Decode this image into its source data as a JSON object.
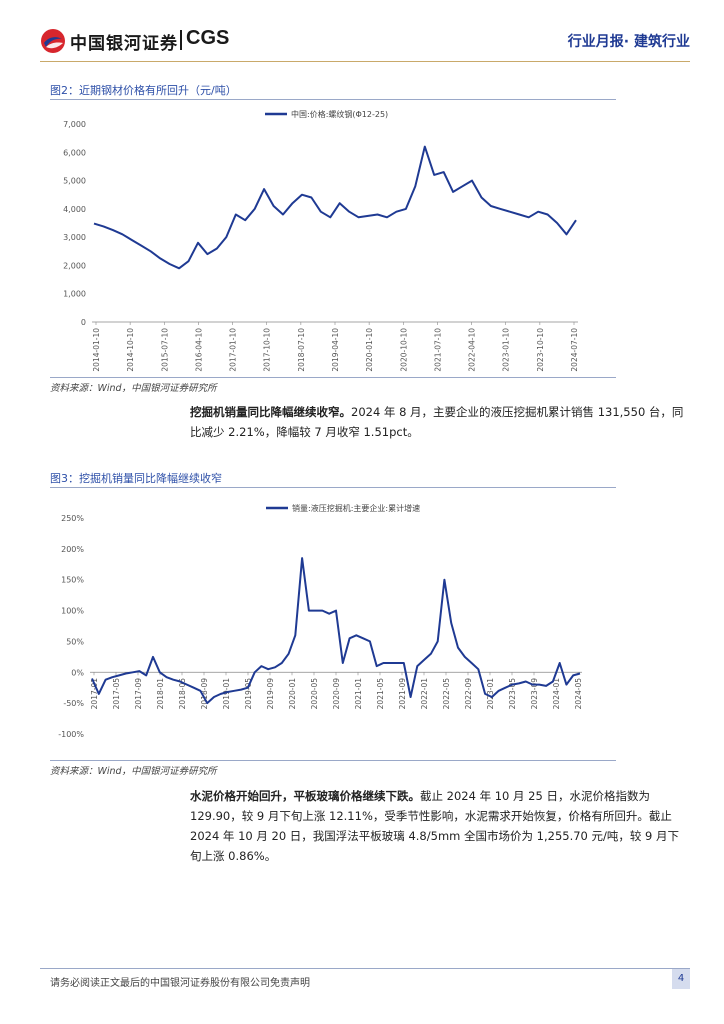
{
  "header": {
    "brand_cn": "中国银河证券",
    "brand_en": "CGS",
    "report_tag": "行业月报· 建筑行业"
  },
  "figure2": {
    "caption": "图2：近期钢材价格有所回升（元/吨）",
    "source": "资料来源：Wind，中国银河证券研究所",
    "chart_data": {
      "type": "line",
      "title": "",
      "series": [
        {
          "name": "中国:价格:螺纹钢(Φ12-25)",
          "values": [
            3480,
            3380,
            3250,
            3100,
            2900,
            2700,
            2500,
            2250,
            2050,
            1900,
            2150,
            2800,
            2400,
            2600,
            3000,
            3800,
            3600,
            4000,
            4700,
            4100,
            3800,
            4200,
            4500,
            4400,
            3900,
            3700,
            4200,
            3900,
            3700,
            3750,
            3800,
            3700,
            3900,
            4000,
            4800,
            6200,
            5200,
            5300,
            4600,
            4800,
            5000,
            4400,
            4100,
            4000,
            3900,
            3800,
            3700,
            3900,
            3800,
            3500,
            3100,
            3600
          ]
        }
      ],
      "x_tick_labels": [
        "2014-01-10",
        "2014-10-10",
        "2015-07-10",
        "2016-04-10",
        "2017-01-10",
        "2017-10-10",
        "2018-07-10",
        "2019-04-10",
        "2020-01-10",
        "2020-10-10",
        "2021-07-10",
        "2022-04-10",
        "2023-01-10",
        "2023-10-10",
        "2024-07-10"
      ],
      "y_tick_labels": [
        "7,000",
        "6,000",
        "5,000",
        "4,000",
        "3,000",
        "2,000",
        "1,000",
        "0"
      ],
      "ylim": [
        0,
        7000
      ],
      "color": "#1f3a93"
    }
  },
  "para1": {
    "heading": "挖掘机销量同比降幅继续收窄。",
    "body": "2024 年 8 月，主要企业的液压挖掘机累计销售 131,550 台，同比减少 2.21%，降幅较 7 月收窄 1.51pct。"
  },
  "figure3": {
    "caption": "图3：挖掘机销量同比降幅继续收窄",
    "source": "资料来源：Wind，中国银河证券研究所",
    "chart_data": {
      "type": "line",
      "title": "",
      "series": [
        {
          "name": "销量:液压挖掘机:主要企业:累计增速",
          "unit": "%",
          "values": [
            -10,
            -35,
            -12,
            -8,
            -5,
            -2,
            0,
            2,
            -5,
            25,
            0,
            -8,
            -12,
            -15,
            -20,
            -25,
            -30,
            -50,
            -40,
            -35,
            -32,
            -30,
            -28,
            -25,
            0,
            10,
            5,
            8,
            15,
            30,
            60,
            185,
            100,
            100,
            100,
            95,
            100,
            15,
            55,
            60,
            55,
            50,
            10,
            15,
            15,
            15,
            15,
            -40,
            10,
            20,
            30,
            50,
            150,
            80,
            40,
            25,
            15,
            5,
            -35,
            -40,
            -30,
            -25,
            -20,
            -18,
            -15,
            -20,
            -20,
            -22,
            -15,
            15,
            -20,
            -5,
            -2
          ]
        }
      ],
      "x_tick_labels": [
        "2017-01",
        "2017-05",
        "2017-09",
        "2018-01",
        "2018-05",
        "2018-09",
        "2019-01",
        "2019-05",
        "2019-09",
        "2020-01",
        "2020-05",
        "2020-09",
        "2021-01",
        "2021-05",
        "2021-09",
        "2022-01",
        "2022-05",
        "2022-09",
        "2023-01",
        "2023-05",
        "2023-09",
        "2024-01",
        "2024-05"
      ],
      "y_tick_labels": [
        "250%",
        "200%",
        "150%",
        "100%",
        "50%",
        "0%",
        "-50%",
        "-100%"
      ],
      "ylim": [
        -100,
        250
      ],
      "color": "#1f3a93"
    }
  },
  "para2": {
    "heading": "水泥价格开始回升，平板玻璃价格继续下跌。",
    "body": "截止 2024 年 10 月 25 日，水泥价格指数为 129.90，较 9 月下旬上涨 12.11%，受季节性影响，水泥需求开始恢复，价格有所回升。截止 2024 年 10 月 20 日，我国浮法平板玻璃 4.8/5mm 全国市场价为 1,255.70 元/吨，较 9 月下旬上涨 0.86%。"
  },
  "footer": {
    "disclaimer": "请务必阅读正文最后的中国银河证券股份有限公司免责声明",
    "page_number": "4"
  }
}
